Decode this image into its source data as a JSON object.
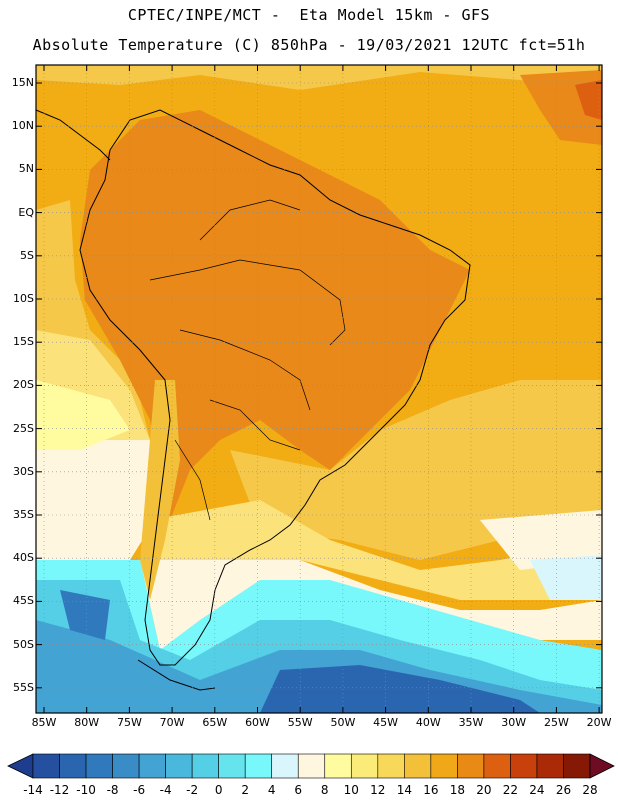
{
  "title": {
    "line1": "CPTEC/INPE/MCT -  Eta Model 15km - GFS",
    "line2": "Absolute Temperature (C) 850hPa - 19/03/2021 12UTC fct=51h"
  },
  "map": {
    "lat_labels": [
      "15N",
      "10N",
      "5N",
      "EQ",
      "5S",
      "10S",
      "15S",
      "20S",
      "25S",
      "30S",
      "35S",
      "40S",
      "45S",
      "50S",
      "55S"
    ],
    "lon_labels": [
      "85W",
      "80W",
      "75W",
      "70W",
      "65W",
      "60W",
      "55W",
      "50W",
      "45W",
      "40W",
      "35W",
      "30W",
      "25W",
      "20W"
    ],
    "regions": [
      {
        "name": "warm-tropics",
        "color": "#f2ac14"
      },
      {
        "name": "hot-interior",
        "color": "#e8891a"
      },
      {
        "name": "warm-sea",
        "color": "#f5c84a"
      },
      {
        "name": "mild-south",
        "color": "#fbe27a"
      },
      {
        "name": "cool-south",
        "color": "#fff7cc"
      },
      {
        "name": "cold-ocean",
        "color": "#6cf0f0"
      },
      {
        "name": "colder-ocean",
        "color": "#43c4df"
      },
      {
        "name": "coldest-ocean",
        "color": "#2c78b8"
      }
    ]
  },
  "colorbar": {
    "labels": [
      "-14",
      "-12",
      "-10",
      "-8",
      "-6",
      "-4",
      "-2",
      "0",
      "2",
      "4",
      "6",
      "8",
      "10",
      "12",
      "14",
      "16",
      "18",
      "20",
      "22",
      "24",
      "26",
      "28"
    ],
    "colors": [
      "#1f3d8f",
      "#24509f",
      "#2a66b0",
      "#3179bd",
      "#3a8cc6",
      "#43a3d2",
      "#4ab8dc",
      "#55cfe6",
      "#66e4ee",
      "#78f8fa",
      "#d8f6fc",
      "#fff6e0",
      "#fffca0",
      "#fbeb78",
      "#f7d858",
      "#f3c03a",
      "#f0a818",
      "#e88a14",
      "#dd6010",
      "#c8400c",
      "#aa2a08",
      "#861806",
      "#6e0c24"
    ]
  }
}
